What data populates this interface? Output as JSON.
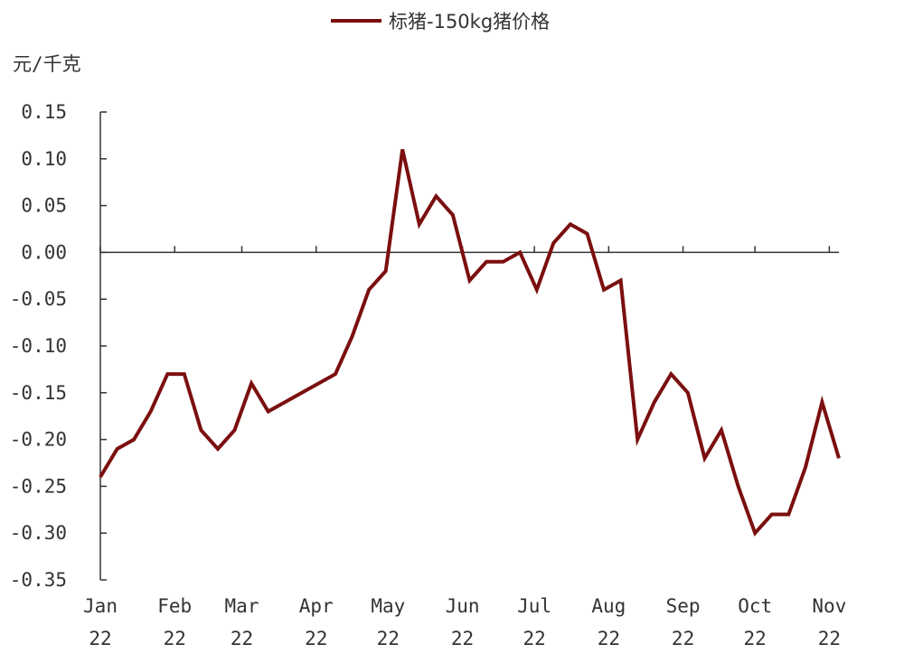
{
  "chart_data": {
    "type": "line",
    "legend": {
      "position": "top-center"
    },
    "y_unit": "元/千克",
    "ylim": [
      -0.35,
      0.15
    ],
    "y_ticks": [
      0.15,
      0.1,
      0.05,
      0.0,
      -0.05,
      -0.1,
      -0.15,
      -0.2,
      -0.25,
      -0.3,
      -0.35
    ],
    "y_tick_labels": [
      "0.15",
      "0.10",
      "0.05",
      "0.00",
      "-0.05",
      "-0.10",
      "-0.15",
      "-0.20",
      "-0.25",
      "-0.30",
      "-0.35"
    ],
    "x_ticks": [
      {
        "month": "Jan",
        "year": "22"
      },
      {
        "month": "Feb",
        "year": "22"
      },
      {
        "month": "Mar",
        "year": "22"
      },
      {
        "month": "Apr",
        "year": "22"
      },
      {
        "month": "May",
        "year": "22"
      },
      {
        "month": "Jun",
        "year": "22"
      },
      {
        "month": "Jul",
        "year": "22"
      },
      {
        "month": "Aug",
        "year": "22"
      },
      {
        "month": "Sep",
        "year": "22"
      },
      {
        "month": "Oct",
        "year": "22"
      },
      {
        "month": "Nov",
        "year": "22"
      }
    ],
    "series": [
      {
        "name": "标猪-150kg猪价格",
        "color": "#7b0f0f",
        "points": [
          {
            "x": "2022-01-01",
            "y": -0.24
          },
          {
            "x": "2022-01-08",
            "y": -0.21
          },
          {
            "x": "2022-01-15",
            "y": -0.2
          },
          {
            "x": "2022-01-22",
            "y": -0.17
          },
          {
            "x": "2022-01-29",
            "y": -0.13
          },
          {
            "x": "2022-02-05",
            "y": -0.13
          },
          {
            "x": "2022-02-12",
            "y": -0.19
          },
          {
            "x": "2022-02-19",
            "y": -0.21
          },
          {
            "x": "2022-02-26",
            "y": -0.19
          },
          {
            "x": "2022-03-05",
            "y": -0.14
          },
          {
            "x": "2022-03-12",
            "y": -0.17
          },
          {
            "x": "2022-04-09",
            "y": -0.13
          },
          {
            "x": "2022-04-16",
            "y": -0.09
          },
          {
            "x": "2022-04-23",
            "y": -0.04
          },
          {
            "x": "2022-04-30",
            "y": -0.02
          },
          {
            "x": "2022-05-07",
            "y": 0.11
          },
          {
            "x": "2022-05-14",
            "y": 0.03
          },
          {
            "x": "2022-05-21",
            "y": 0.06
          },
          {
            "x": "2022-05-28",
            "y": 0.04
          },
          {
            "x": "2022-06-04",
            "y": -0.03
          },
          {
            "x": "2022-06-11",
            "y": -0.01
          },
          {
            "x": "2022-06-18",
            "y": -0.01
          },
          {
            "x": "2022-06-25",
            "y": 0.0
          },
          {
            "x": "2022-07-02",
            "y": -0.04
          },
          {
            "x": "2022-07-09",
            "y": 0.01
          },
          {
            "x": "2022-07-16",
            "y": 0.03
          },
          {
            "x": "2022-07-23",
            "y": 0.02
          },
          {
            "x": "2022-07-30",
            "y": -0.04
          },
          {
            "x": "2022-08-06",
            "y": -0.03
          },
          {
            "x": "2022-08-13",
            "y": -0.2
          },
          {
            "x": "2022-08-20",
            "y": -0.16
          },
          {
            "x": "2022-08-27",
            "y": -0.13
          },
          {
            "x": "2022-09-03",
            "y": -0.15
          },
          {
            "x": "2022-09-10",
            "y": -0.22
          },
          {
            "x": "2022-09-17",
            "y": -0.19
          },
          {
            "x": "2022-09-24",
            "y": -0.25
          },
          {
            "x": "2022-10-01",
            "y": -0.3
          },
          {
            "x": "2022-10-08",
            "y": -0.28
          },
          {
            "x": "2022-10-15",
            "y": -0.28
          },
          {
            "x": "2022-10-22",
            "y": -0.23
          },
          {
            "x": "2022-10-29",
            "y": -0.16
          },
          {
            "x": "2022-11-05",
            "y": -0.22
          }
        ]
      }
    ]
  }
}
